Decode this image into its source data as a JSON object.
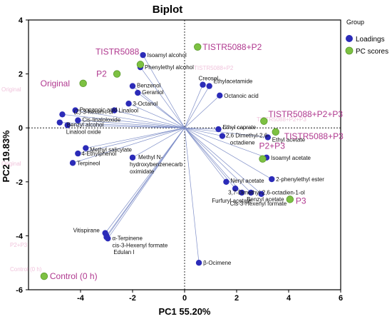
{
  "chart_data": {
    "type": "scatter",
    "title": "Biplot",
    "xlabel": "PC1 55.20%",
    "ylabel": "PC2 19.83%",
    "xlim": [
      -6,
      6
    ],
    "ylim": [
      -6,
      4
    ],
    "xticks": [
      -4,
      -2,
      0,
      2,
      4,
      6
    ],
    "yticks": [
      4,
      2,
      0,
      -2,
      -4,
      -6
    ],
    "legend": {
      "title": "Group",
      "placement": "right",
      "entries": [
        {
          "name": "Loadings",
          "color": "#2b2bb8"
        },
        {
          "name": "PC scores",
          "color": "#7dc142"
        }
      ]
    },
    "loadings": [
      {
        "label": "Isoamyl alcohol",
        "x": -1.6,
        "y": 2.7
      },
      {
        "label": "Phenylethyl alcohol",
        "x": -1.7,
        "y": 2.25
      },
      {
        "label": "Benzenol",
        "x": -2.0,
        "y": 1.55
      },
      {
        "label": "Geraniol",
        "x": -1.8,
        "y": 1.3
      },
      {
        "label": "3-Octanol",
        "x": -2.15,
        "y": 0.9
      },
      {
        "label": "Linalool",
        "x": -2.7,
        "y": 0.65
      },
      {
        "label": "Creosol",
        "x": 0.7,
        "y": 1.6
      },
      {
        "label": "Ethylacetamide",
        "x": 0.95,
        "y": 1.55
      },
      {
        "label": "Octanoic acid",
        "x": 1.35,
        "y": 1.2
      },
      {
        "label": "Propanoic acid",
        "x": -4.2,
        "y": 0.65
      },
      {
        "label": "(Z)-3-hexen-l-ol",
        "x": -4.7,
        "y": 0.5
      },
      {
        "label": "Cis-linaloloxide",
        "x": -4.1,
        "y": 0.28
      },
      {
        "label": "Benzyl alcohol",
        "x": -4.8,
        "y": 0.2
      },
      {
        "label": "Linalool oxide",
        "x": -4.5,
        "y": 0.1
      },
      {
        "label": "Ethyl caprate",
        "x": 1.3,
        "y": -0.05
      },
      {
        "label": "2,6 Dimethyl-2,6-octadiene",
        "x": 1.45,
        "y": -0.3
      },
      {
        "label": "Ethyl acetate",
        "x": 3.2,
        "y": -0.35
      },
      {
        "label": "Isoamyl acetate",
        "x": 3.15,
        "y": -1.1
      },
      {
        "label": "Methyl salicylate",
        "x": -3.8,
        "y": -0.75
      },
      {
        "label": "4-Ethylphenol",
        "x": -4.1,
        "y": -0.95
      },
      {
        "label": "Terpineol",
        "x": -4.3,
        "y": -1.3
      },
      {
        "label": "Methyl N-hydroxybenzenecarb oximidate",
        "x": -2.0,
        "y": -1.1
      },
      {
        "label": "Neryl acetate",
        "x": 1.6,
        "y": -2.0
      },
      {
        "label": "2-phenylethyl ester",
        "x": 3.35,
        "y": -1.9
      },
      {
        "label": "3,7-Dimethyl-2,6-octadien-1-ol",
        "x": 1.95,
        "y": -2.25
      },
      {
        "label": "Furfuryl acetate",
        "x": 2.2,
        "y": -2.4
      },
      {
        "label": "Benzyl acetate",
        "x": 2.55,
        "y": -2.4
      },
      {
        "label": "Cis-3-Hexenyl formate",
        "x": 2.95,
        "y": -2.45
      },
      {
        "label": "Vitispirane",
        "x": -3.05,
        "y": -3.9
      },
      {
        "label": "α-Terpinene",
        "x": -3.0,
        "y": -4.0
      },
      {
        "label": "cis-3-Hexenyl formate",
        "x": -3.0,
        "y": -4.05
      },
      {
        "label": "Edulan I",
        "x": -2.95,
        "y": -4.1
      },
      {
        "label": "β-Ocimene",
        "x": 0.55,
        "y": -5.0
      }
    ],
    "scores": [
      {
        "label": "TISTR5088+P2",
        "x": 0.5,
        "y": 3.0
      },
      {
        "label": "TISTR5088",
        "x": -1.7,
        "y": 2.35
      },
      {
        "label": "P2",
        "x": -2.6,
        "y": 2.0
      },
      {
        "label": "Original",
        "x": -3.9,
        "y": 1.65
      },
      {
        "label": "TISTR5088+P2+P3",
        "x": 3.05,
        "y": 0.25
      },
      {
        "label": "TISTR5088+P3",
        "x": 3.5,
        "y": -0.15
      },
      {
        "label": "P2+P3",
        "x": 3.0,
        "y": -1.15
      },
      {
        "label": "P3",
        "x": 4.05,
        "y": -2.65
      },
      {
        "label": "Control (0 h)",
        "x": -5.4,
        "y": -5.5
      }
    ]
  }
}
